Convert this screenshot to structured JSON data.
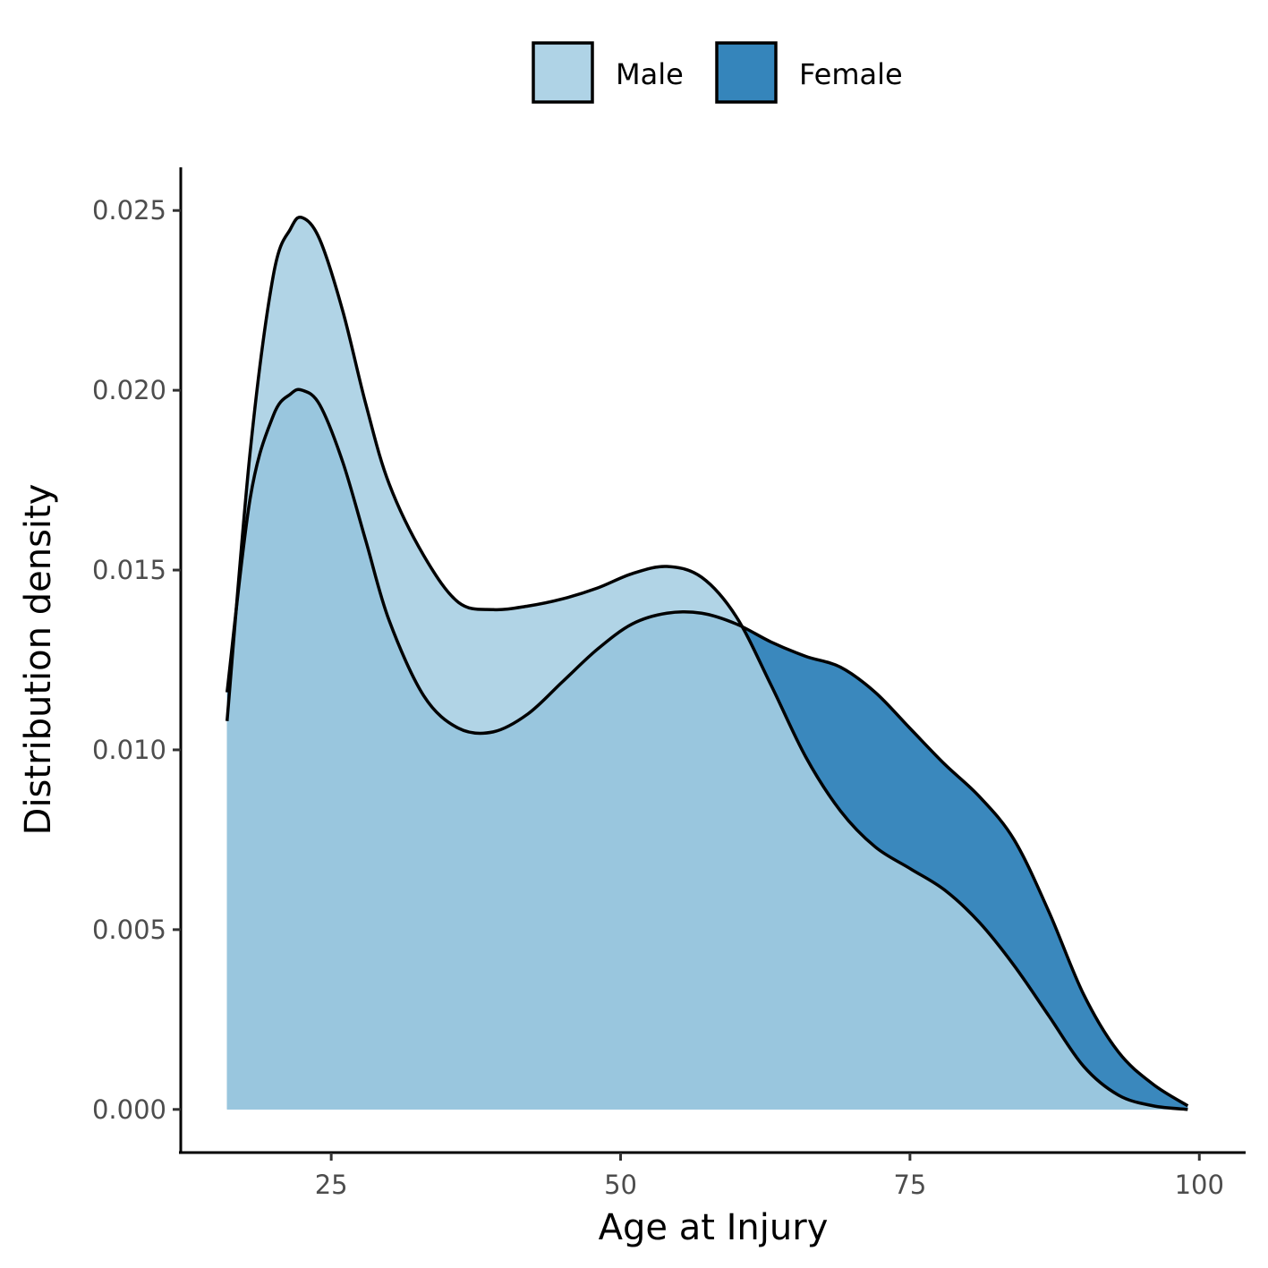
{
  "chart_data": {
    "type": "area",
    "xlabel": "Age at Injury",
    "ylabel": "Distribution density",
    "xlim": [
      12,
      104
    ],
    "ylim": [
      -0.0012,
      0.0262
    ],
    "x_ticks": [
      25,
      50,
      75,
      100
    ],
    "x_tick_labels": [
      "25",
      "50",
      "75",
      "100"
    ],
    "y_ticks": [
      0,
      0.005,
      0.01,
      0.015,
      0.02,
      0.025
    ],
    "y_tick_labels": [
      "0.000",
      "0.005",
      "0.010",
      "0.015",
      "0.020",
      "0.025"
    ],
    "grid": false,
    "legend_position": "top",
    "series": [
      {
        "name": "Male",
        "color": "#a6cee3",
        "x": [
          16,
          18,
          20,
          21.5,
          22.5,
          24,
          26,
          28,
          30,
          33,
          36,
          39,
          42,
          45,
          48,
          51,
          54,
          57,
          60,
          63,
          66,
          69,
          72,
          75,
          78,
          81,
          84,
          87,
          90,
          93,
          96,
          99
        ],
        "y": [
          0.0108,
          0.0183,
          0.0232,
          0.0245,
          0.0248,
          0.0242,
          0.0222,
          0.0196,
          0.0174,
          0.0154,
          0.0141,
          0.0139,
          0.014,
          0.0142,
          0.0145,
          0.0149,
          0.0151,
          0.0148,
          0.0137,
          0.0118,
          0.0098,
          0.0083,
          0.0073,
          0.0067,
          0.0061,
          0.0052,
          0.004,
          0.0026,
          0.0012,
          0.0004,
          0.0001,
          0.0
        ]
      },
      {
        "name": "Female",
        "color": "#1f78b4",
        "x": [
          16,
          18,
          20,
          21.5,
          22.5,
          24,
          26,
          28,
          30,
          33,
          36,
          39,
          42,
          45,
          48,
          51,
          54,
          57,
          60,
          63,
          66,
          69,
          72,
          75,
          78,
          81,
          84,
          87,
          90,
          93,
          96,
          99
        ],
        "y": [
          0.0116,
          0.017,
          0.0193,
          0.0199,
          0.02,
          0.0196,
          0.018,
          0.0158,
          0.0136,
          0.0115,
          0.0106,
          0.0105,
          0.011,
          0.0119,
          0.0128,
          0.0135,
          0.0138,
          0.0138,
          0.0135,
          0.013,
          0.0126,
          0.0123,
          0.0116,
          0.0106,
          0.0096,
          0.0087,
          0.0075,
          0.0055,
          0.0032,
          0.0016,
          0.0007,
          0.0001
        ]
      }
    ]
  }
}
